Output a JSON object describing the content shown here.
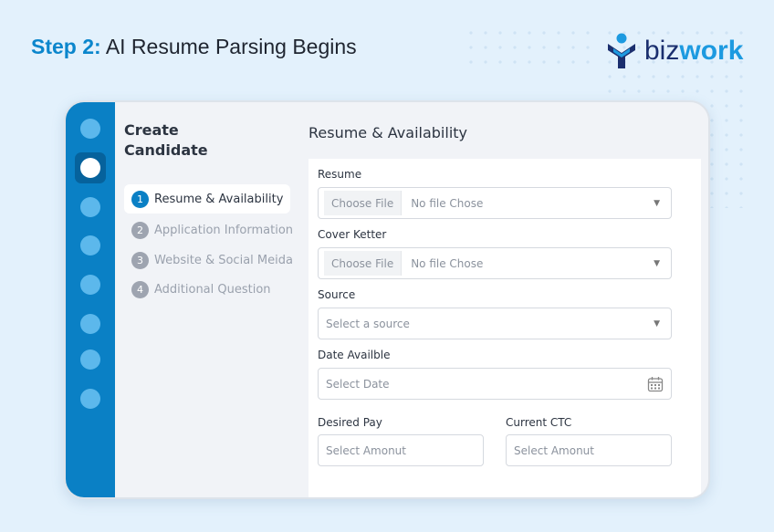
{
  "header": {
    "step_label": "Step 2:",
    "title": "AI Resume Parsing Begins"
  },
  "logo": {
    "text_a": "biz",
    "text_b": "work",
    "icon": "bizwork-person-icon"
  },
  "colors": {
    "accent": "#0a80c5",
    "background": "#e3f1fc"
  },
  "form": {
    "title": "Create Candidate",
    "steps": [
      {
        "num": "1",
        "label": "Resume & Availability"
      },
      {
        "num": "2",
        "label": "Application Information"
      },
      {
        "num": "3",
        "label": "Website & Social Meida"
      },
      {
        "num": "4",
        "label": "Additional Question"
      }
    ],
    "section_title": "Resume & Availability",
    "resume": {
      "label": "Resume",
      "button": "Choose File",
      "value": "No file Chose"
    },
    "cover": {
      "label": "Cover Ketter",
      "button": "Choose File",
      "value": "No file Chose"
    },
    "source": {
      "label": "Source",
      "placeholder": "Select  a source"
    },
    "date": {
      "label": "Date Availble",
      "placeholder": "Select Date"
    },
    "pay": {
      "label": "Desired Pay",
      "placeholder": "Select Amonut"
    },
    "ctc": {
      "label": "Current CTC",
      "placeholder": "Select Amonut"
    }
  }
}
